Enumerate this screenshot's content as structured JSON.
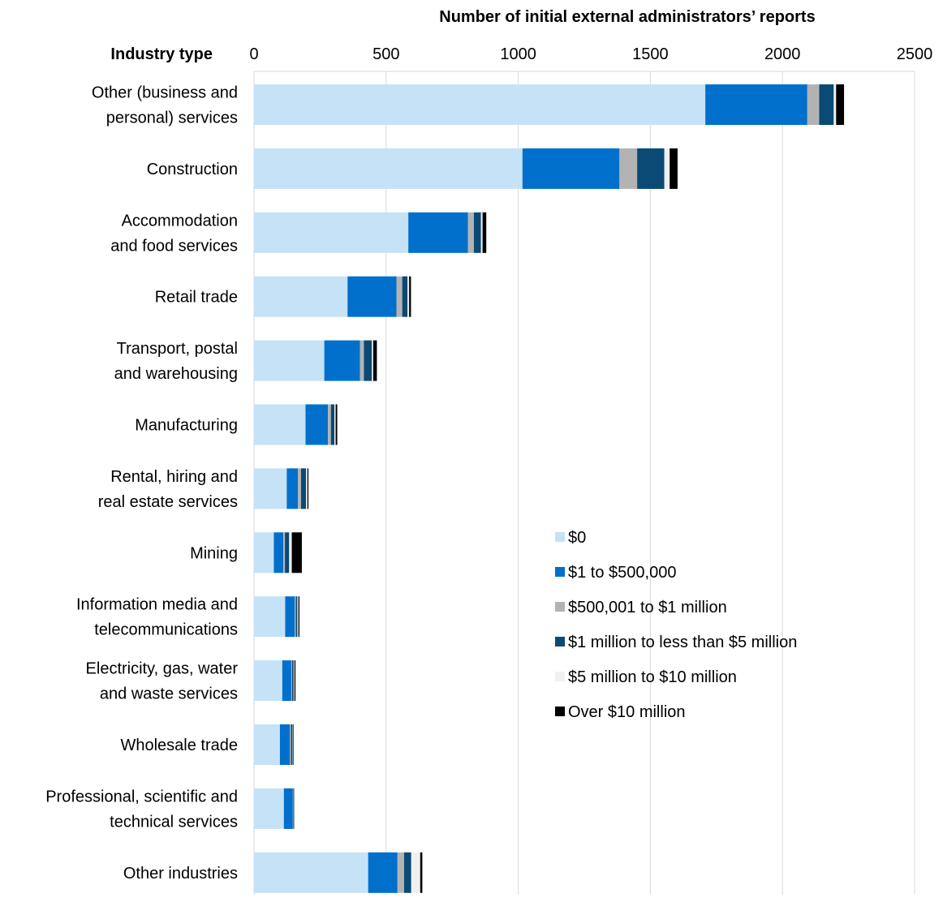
{
  "chart_data": {
    "type": "bar",
    "orientation": "horizontal",
    "stacked": true,
    "title": "",
    "xlabel": "Number of initial external administrators’ reports",
    "ylabel": "Industry type",
    "xlim": [
      0,
      2500
    ],
    "xticks": [
      "0",
      "500",
      "1000",
      "1500",
      "2000",
      "2500"
    ],
    "grid": "vertical",
    "legend_position": "inside-right",
    "categories": [
      [
        "Other (business and",
        "personal) services"
      ],
      [
        "Construction"
      ],
      [
        "Accommodation",
        "and food services"
      ],
      [
        "Retail trade"
      ],
      [
        "Transport, postal",
        "and warehousing"
      ],
      [
        "Manufacturing"
      ],
      [
        "Rental, hiring and",
        "real estate services"
      ],
      [
        "Mining"
      ],
      [
        "Information media and",
        "telecommunications"
      ],
      [
        "Electricity, gas, water",
        "and waste services"
      ],
      [
        "Wholesale trade"
      ],
      [
        "Professional, scientific and",
        "technical services"
      ],
      [
        "Other industries"
      ]
    ],
    "series": [
      {
        "name": "$0",
        "color": "#c5e2f7",
        "values": [
          1708,
          1016,
          584,
          354,
          266,
          195,
          124,
          75,
          118,
          107,
          98,
          113,
          432
        ]
      },
      {
        "name": "$1 to $500,000",
        "color": "#0070cc",
        "values": [
          386,
          367,
          226,
          185,
          135,
          85,
          42,
          36,
          36,
          34,
          38,
          34,
          111
        ]
      },
      {
        "name": "$500,001 to $1 million",
        "color": "#b3b3b3",
        "values": [
          45,
          67,
          22,
          22,
          15,
          11,
          12,
          6,
          4,
          3,
          4,
          2,
          25
        ]
      },
      {
        "name": "$1 million to less than $5 million",
        "color": "#0a4a75",
        "values": [
          55,
          103,
          27,
          20,
          30,
          13,
          19,
          16,
          6,
          6,
          6,
          2,
          27
        ]
      },
      {
        "name": "$5 million to $10 million",
        "color": "#f0f0f0",
        "values": [
          9,
          20,
          6,
          6,
          5,
          5,
          5,
          10,
          4,
          3,
          2,
          1,
          34
        ]
      },
      {
        "name": "Over $10 million",
        "color": "#000000",
        "values": [
          30,
          30,
          14,
          7,
          14,
          6,
          4,
          38,
          4,
          4,
          2,
          1,
          8
        ]
      }
    ]
  }
}
